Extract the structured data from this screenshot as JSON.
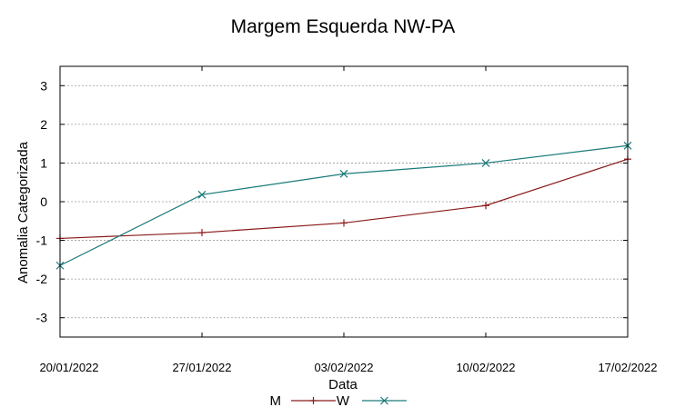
{
  "chart_data": {
    "type": "line",
    "title": "Margem Esquerda NW-PA",
    "xlabel": "Data",
    "ylabel": "Anomalia Categorizada",
    "categories": [
      "20/01/2022",
      "27/01/2022",
      "03/02/2022",
      "10/02/2022",
      "17/02/2022"
    ],
    "ylim": [
      -3.5,
      3.5
    ],
    "yticks": [
      -3,
      -2,
      -1,
      0,
      1,
      2,
      3
    ],
    "grid": true,
    "legend_position": "bottom",
    "series": [
      {
        "name": "M",
        "color": "#8b1a1a",
        "marker": "plus",
        "values": [
          -0.95,
          -0.8,
          -0.55,
          -0.1,
          1.1
        ]
      },
      {
        "name": "W",
        "color": "#1a7a7a",
        "marker": "x",
        "values": [
          -1.65,
          0.18,
          0.72,
          1.0,
          1.45
        ]
      }
    ]
  }
}
